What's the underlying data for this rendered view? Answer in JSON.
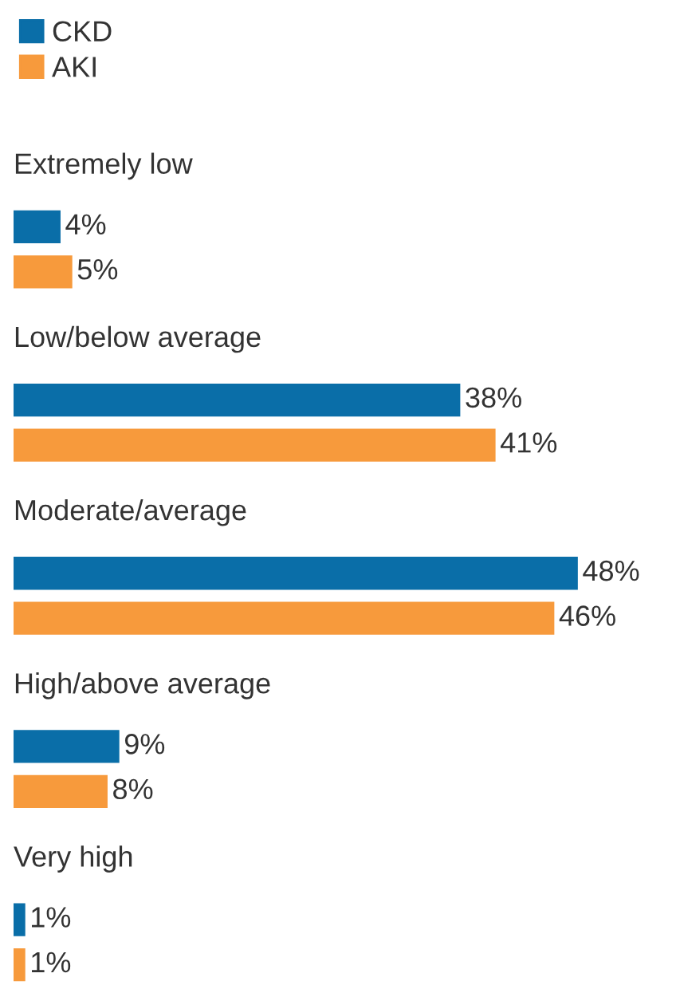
{
  "chart_data": {
    "type": "bar",
    "orientation": "horizontal",
    "categories": [
      "Extremely low",
      "Low/below average",
      "Moderate/average",
      "High/above average",
      "Very high"
    ],
    "series": [
      {
        "name": "CKD",
        "color": "#0a6ea8",
        "values": [
          4,
          38,
          48,
          9,
          1
        ],
        "value_labels": [
          "4%",
          "38%",
          "48%",
          "9%",
          "1%"
        ]
      },
      {
        "name": "AKI",
        "color": "#f79a3c",
        "values": [
          5,
          41,
          46,
          8,
          1
        ],
        "value_labels": [
          "5%",
          "41%",
          "46%",
          "8%",
          "1%"
        ]
      }
    ],
    "legend": "top left"
  }
}
